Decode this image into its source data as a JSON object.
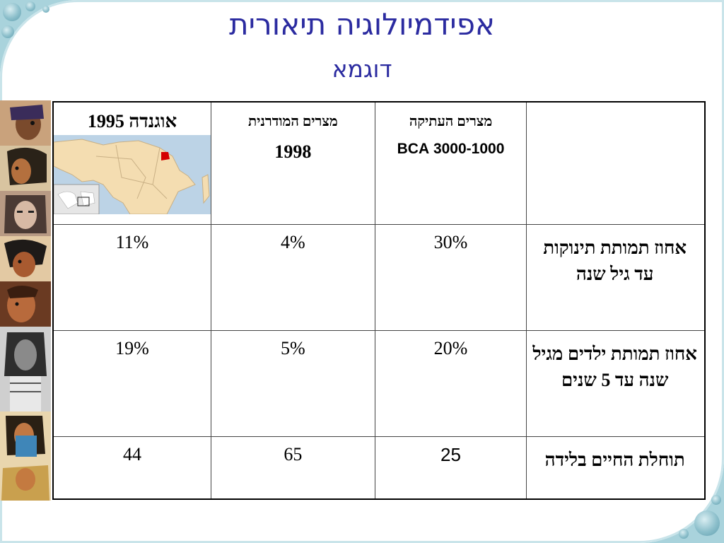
{
  "title": "אפידמיולוגיה תיאורית",
  "subtitle": "דוגמא",
  "table": {
    "columns": [
      {
        "label": "מצרים העתיקה",
        "sub": "3000-1000 BCA"
      },
      {
        "label": "מצרים המודרנית",
        "sub": "1998"
      },
      {
        "label": "אוגנדה 1995",
        "sub": ""
      }
    ],
    "rows": [
      {
        "label": "אחוז תמותת תינוקות עד גיל שנה",
        "values": [
          "30%",
          "4%",
          "11%"
        ]
      },
      {
        "label": "אחוז תמותת ילדים מגיל שנה עד 5 שנים",
        "values": [
          "20%",
          "5%",
          "19%"
        ]
      },
      {
        "label": "תוחלת החיים בלידה",
        "values": [
          "25",
          "65",
          "44"
        ]
      }
    ]
  },
  "colors": {
    "title": "#2b2ba0",
    "header_text": "#1f1fb0",
    "frame": "#a9d3dc",
    "uganda_highlight": "#d40000"
  },
  "icons": {
    "map": "africa-map-icon",
    "portraits": "egyptian-portrait-icon"
  }
}
